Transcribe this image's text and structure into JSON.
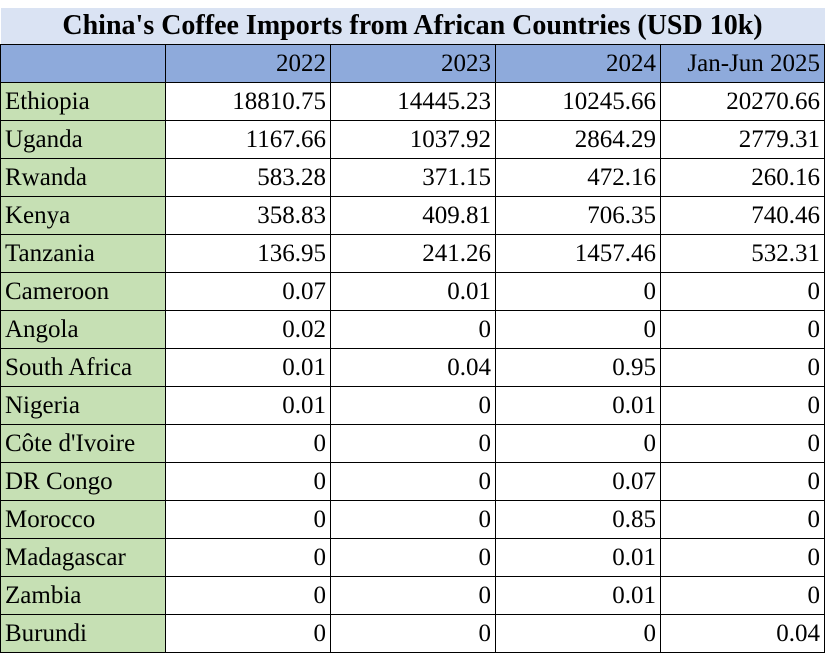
{
  "chart_data": {
    "type": "table",
    "title": "China's Coffee Imports from African Countries (USD 10k)",
    "columns": [
      "",
      "2022",
      "2023",
      "2024",
      "Jan-Jun 2025"
    ],
    "rows": [
      {
        "country": "Ethiopia",
        "values": [
          "18810.75",
          "14445.23",
          "10245.66",
          "20270.66"
        ]
      },
      {
        "country": "Uganda",
        "values": [
          "1167.66",
          "1037.92",
          "2864.29",
          "2779.31"
        ]
      },
      {
        "country": "Rwanda",
        "values": [
          "583.28",
          "371.15",
          "472.16",
          "260.16"
        ]
      },
      {
        "country": "Kenya",
        "values": [
          "358.83",
          "409.81",
          "706.35",
          "740.46"
        ]
      },
      {
        "country": "Tanzania",
        "values": [
          "136.95",
          "241.26",
          "1457.46",
          "532.31"
        ]
      },
      {
        "country": "Cameroon",
        "values": [
          "0.07",
          "0.01",
          "0",
          "0"
        ]
      },
      {
        "country": "Angola",
        "values": [
          "0.02",
          "0",
          "0",
          "0"
        ]
      },
      {
        "country": "South Africa",
        "values": [
          "0.01",
          "0.04",
          "0.95",
          "0"
        ]
      },
      {
        "country": "Nigeria",
        "values": [
          "0.01",
          "0",
          "0.01",
          "0"
        ]
      },
      {
        "country": "Côte d'Ivoire",
        "values": [
          "0",
          "0",
          "0",
          "0"
        ]
      },
      {
        "country": "DR Congo",
        "values": [
          "0",
          "0",
          "0.07",
          "0"
        ]
      },
      {
        "country": "Morocco",
        "values": [
          "0",
          "0",
          "0.85",
          "0"
        ]
      },
      {
        "country": "Madagascar",
        "values": [
          "0",
          "0",
          "0.01",
          "0"
        ]
      },
      {
        "country": "Zambia",
        "values": [
          "0",
          "0",
          "0.01",
          "0"
        ]
      },
      {
        "country": "Burundi",
        "values": [
          "0",
          "0",
          "0",
          "0.04"
        ]
      }
    ]
  },
  "colors": {
    "title_background": "#dae3f3",
    "header_background": "#8eaadb",
    "country_background": "#c6e0b4",
    "cell_background": "#ffffff",
    "border": "#000000"
  }
}
